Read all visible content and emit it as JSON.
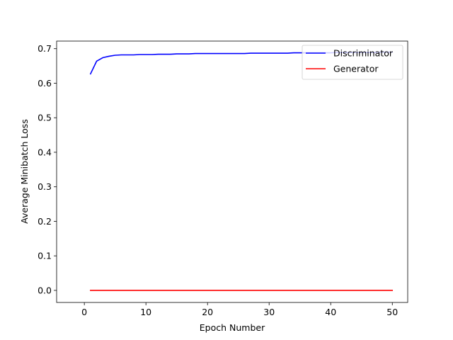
{
  "chart_data": {
    "type": "line",
    "title": "",
    "xlabel": "Epoch Number",
    "ylabel": "Average Minibatch Loss",
    "xlim": [
      -4.5,
      52.5
    ],
    "ylim": [
      -0.035,
      0.722
    ],
    "xticks": [
      0,
      10,
      20,
      30,
      40,
      50
    ],
    "xtick_labels": [
      "0",
      "10",
      "20",
      "30",
      "40",
      "50"
    ],
    "yticks": [
      0.0,
      0.1,
      0.2,
      0.3,
      0.4,
      0.5,
      0.6,
      0.7
    ],
    "ytick_labels": [
      "0.0",
      "0.1",
      "0.2",
      "0.3",
      "0.4",
      "0.5",
      "0.6",
      "0.7"
    ],
    "grid": false,
    "legend_position": "top-right",
    "x": [
      1,
      2,
      3,
      4,
      5,
      6,
      7,
      8,
      9,
      10,
      11,
      12,
      13,
      14,
      15,
      16,
      17,
      18,
      19,
      20,
      21,
      22,
      23,
      24,
      25,
      26,
      27,
      28,
      29,
      30,
      31,
      32,
      33,
      34,
      35,
      36,
      37,
      38,
      39,
      40,
      41,
      42,
      43,
      44,
      45,
      46,
      47,
      48,
      49,
      50
    ],
    "series": [
      {
        "name": "Discriminator",
        "color": "#0000ff",
        "values": [
          0.627,
          0.664,
          0.674,
          0.678,
          0.681,
          0.682,
          0.682,
          0.682,
          0.683,
          0.683,
          0.683,
          0.684,
          0.684,
          0.684,
          0.685,
          0.685,
          0.685,
          0.686,
          0.686,
          0.686,
          0.686,
          0.686,
          0.686,
          0.686,
          0.686,
          0.686,
          0.687,
          0.687,
          0.687,
          0.687,
          0.687,
          0.687,
          0.687,
          0.688,
          0.688,
          0.688,
          0.688,
          0.688,
          0.688,
          0.688,
          0.689,
          0.689,
          0.689,
          0.689,
          0.689,
          0.689,
          0.689,
          0.69,
          0.69,
          0.69
        ]
      },
      {
        "name": "Generator",
        "color": "#ff0000",
        "values": [
          0,
          0,
          0,
          0,
          0,
          0,
          0,
          0,
          0,
          0,
          0,
          0,
          0,
          0,
          0,
          0,
          0,
          0,
          0,
          0,
          0,
          0,
          0,
          0,
          0,
          0,
          0,
          0,
          0,
          0,
          0,
          0,
          0,
          0,
          0,
          0,
          0,
          0,
          0,
          0,
          0,
          0,
          0,
          0,
          0,
          0,
          0,
          0,
          0,
          0
        ]
      }
    ]
  }
}
